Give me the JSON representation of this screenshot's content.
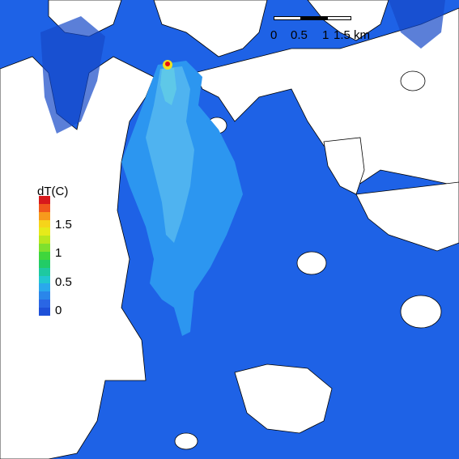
{
  "map": {
    "colors": {
      "land": "#ffffff",
      "water_base": "#1e62e6",
      "water_light": "#2c96f0",
      "water_lighter": "#4fb3f0",
      "plume_core": "#5ec8e8",
      "hotspot_outer": "#f0e020",
      "hotspot_inner": "#e81010",
      "coastline": "#000000",
      "noise_dark": "#1648c8"
    }
  },
  "legend": {
    "title": "dT(C)",
    "ticks": [
      "1.5",
      "1",
      "0.5",
      "0"
    ],
    "colors": [
      "#d7191c",
      "#f0581c",
      "#f79a1c",
      "#f6d41a",
      "#e6ea1a",
      "#b8e61e",
      "#7ee02e",
      "#3fd63c",
      "#22cc66",
      "#1ec9a0",
      "#22c6d0",
      "#2aa8ec",
      "#2a86ea",
      "#2a66e4",
      "#1e50d8"
    ]
  },
  "scalebar": {
    "labels": [
      "0",
      "0.5",
      "1",
      "1.5 km"
    ]
  }
}
